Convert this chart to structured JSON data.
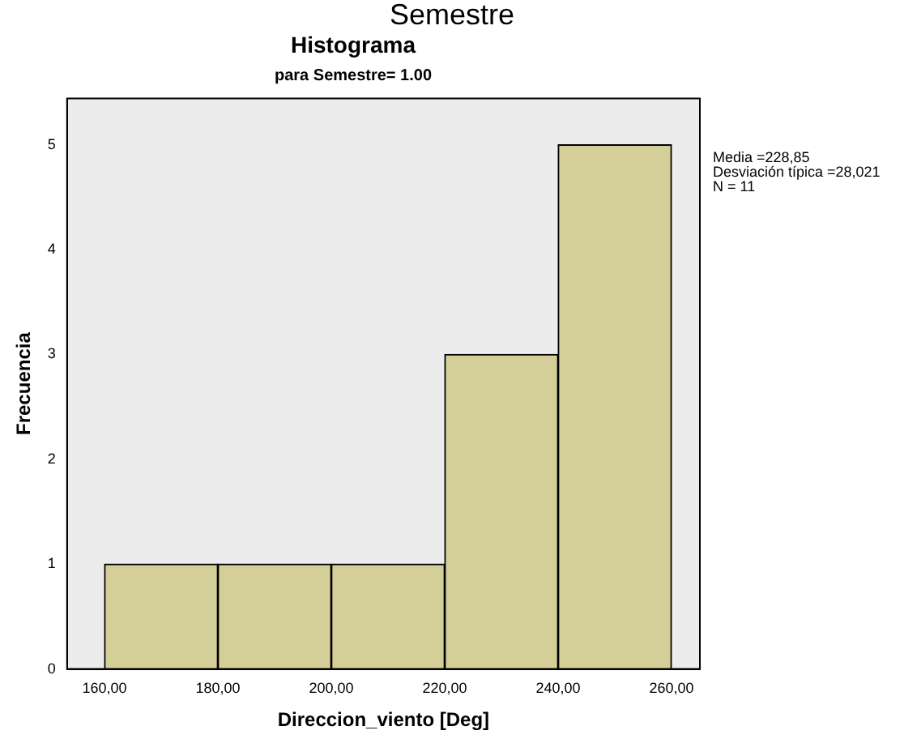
{
  "chart_data": {
    "type": "histogram",
    "title": "Histograma",
    "subtitle": "para Semestre= 1.00",
    "xlabel": "Direccion_viento [Deg]",
    "ylabel": "Frecuencia",
    "annotations": [
      "Semestre",
      "Media =228,85",
      "Desviación típica =28,021",
      "N = 11"
    ],
    "bins": [
      160,
      180,
      200,
      220,
      240,
      260
    ],
    "values": [
      1,
      1,
      1,
      3,
      5
    ],
    "color": "#d4cf99",
    "xlim": [
      153.4,
      265
    ],
    "xticks": [
      {
        "value": 160,
        "label": "160,00"
      },
      {
        "value": 180,
        "label": "180,00"
      },
      {
        "value": 200,
        "label": "200,00"
      },
      {
        "value": 220,
        "label": "220,00"
      },
      {
        "value": 240,
        "label": "240,00"
      },
      {
        "value": 260,
        "label": "260,00"
      }
    ],
    "ylim": [
      0,
      5.44
    ],
    "yticks": [
      0,
      1,
      2,
      3,
      4,
      5
    ],
    "grid": false,
    "legend": false
  }
}
